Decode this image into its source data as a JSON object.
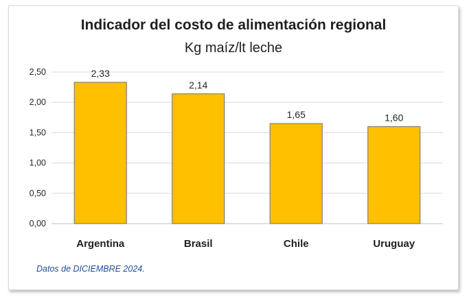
{
  "chart_data": {
    "type": "bar",
    "title": "Indicador del costo de alimentación regional",
    "subtitle": "Kg maíz/lt leche",
    "categories": [
      "Argentina",
      "Brasil",
      "Chile",
      "Uruguay"
    ],
    "values": [
      2.33,
      2.14,
      1.65,
      1.6
    ],
    "value_labels": [
      "2,33",
      "2,14",
      "1,65",
      "1,60"
    ],
    "yticks": [
      0,
      0.5,
      1,
      1.5,
      2,
      2.5
    ],
    "ytick_labels": [
      "0,00",
      "0,50",
      "1,00",
      "1,50",
      "2,00",
      "2,50"
    ],
    "ylim": [
      0,
      2.5
    ],
    "grid": true,
    "bar_color": "#FFC000",
    "bar_border_color": "#7f7f7f"
  },
  "footnote": "Datos de DICIEMBRE 2024."
}
